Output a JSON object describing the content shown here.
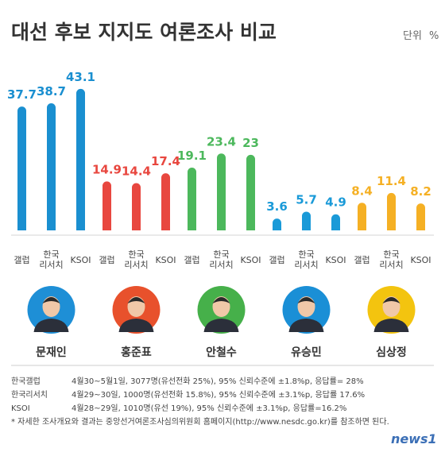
{
  "title": "대선 후보 지지도 여론조사 비교",
  "unit_label": "단위",
  "unit_symbol": "%",
  "chart_data": {
    "type": "bar",
    "title": "대선 후보 지지도 여론조사 비교",
    "ylabel": "",
    "ylim": [
      0,
      45
    ],
    "grid": false,
    "groups": [
      {
        "candidate": "문재인",
        "color": "#1a8fd0",
        "values": [
          37.7,
          38.7,
          43.1
        ]
      },
      {
        "candidate": "홍준표",
        "color": "#e8473f",
        "values": [
          14.9,
          14.4,
          17.4
        ]
      },
      {
        "candidate": "안철수",
        "color": "#4cb85c",
        "values": [
          19.1,
          23.4,
          23
        ]
      },
      {
        "candidate": "유승민",
        "color": "#1a9ad8",
        "values": [
          3.6,
          5.7,
          4.9
        ]
      },
      {
        "candidate": "심상정",
        "color": "#f5b024",
        "values": [
          8.4,
          11.4,
          8.2
        ]
      }
    ],
    "value_labels": [
      [
        "37.7",
        "38.7",
        "43.1"
      ],
      [
        "14.9",
        "14.4",
        "17.4"
      ],
      [
        "19.1",
        "23.4",
        "23"
      ],
      [
        "3.6",
        "5.7",
        "4.9"
      ],
      [
        "8.4",
        "11.4",
        "8.2"
      ]
    ],
    "pollsters": [
      [
        "갤럽"
      ],
      [
        "한국",
        "리서치"
      ],
      [
        "KSOI"
      ]
    ]
  },
  "avatar_colors": [
    "#1e8fd6",
    "#e8512c",
    "#46b04a",
    "#1a8fd6",
    "#f3c40f"
  ],
  "footnotes": [
    {
      "name": "한국갤럽",
      "detail": "4월30~5월1일, 3077명(유선전화 25%), 95% 신뢰수준에 ±1.8%p, 응답률= 28%"
    },
    {
      "name": "한국리서치",
      "detail": "4월29~30일, 1000명(유선전화 15.8%), 95% 신뢰수준에 ±3.1%p, 응답률 17.6%"
    },
    {
      "name": "KSOI",
      "detail": "4월28~29일, 1010명(유선 19%), 95% 신뢰수준에 ±3.1%p, 응답률=16.2%"
    }
  ],
  "note": "* 자세한 조사개요와 결과는 중앙선거여론조사심의위원회 홈페이지(http://www.nesdc.go.kr)를 참조하면 된다.",
  "brand": "news1"
}
